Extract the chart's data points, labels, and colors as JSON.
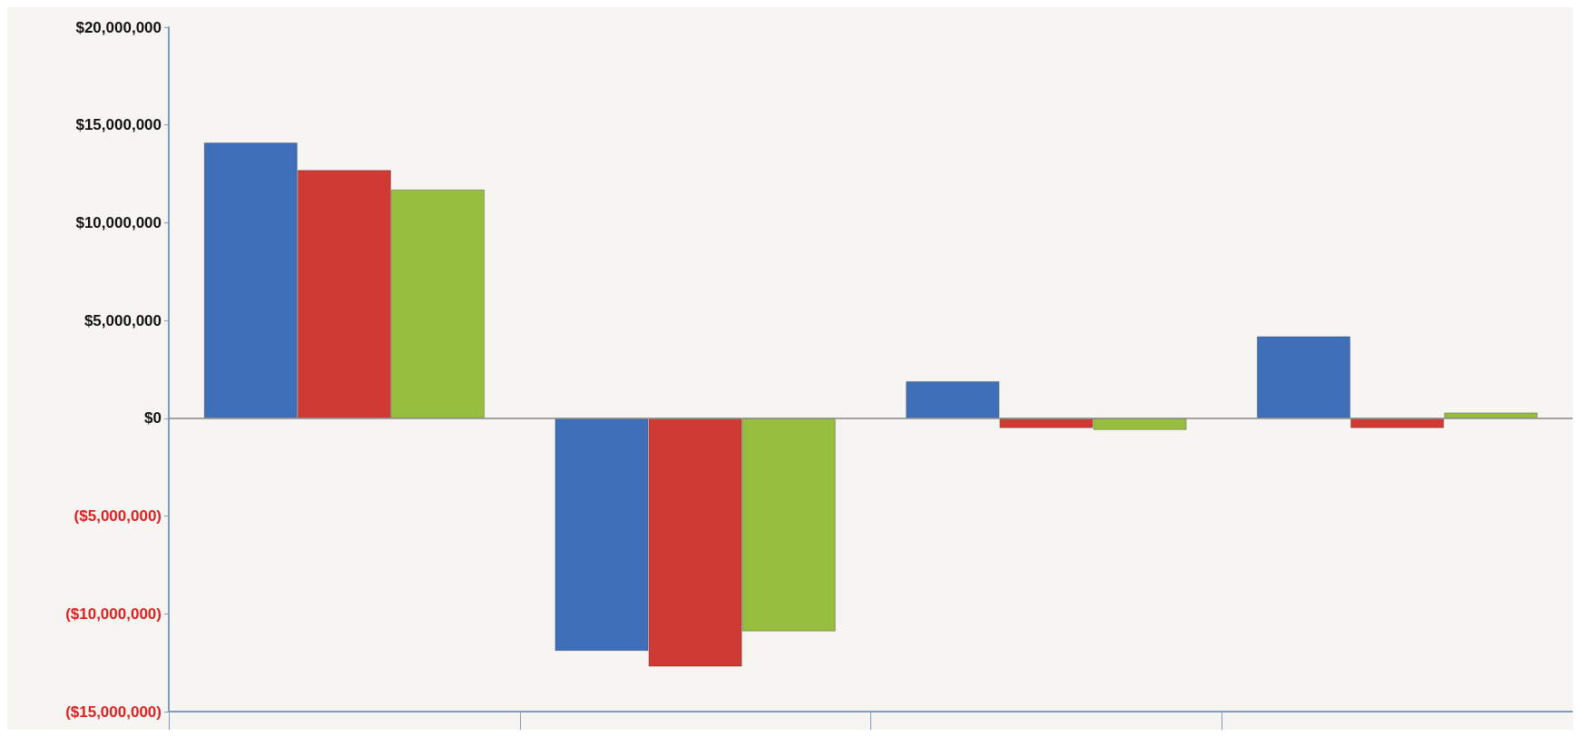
{
  "chart_data": {
    "type": "bar",
    "categories": [
      null,
      null,
      null,
      null
    ],
    "series": [
      {
        "color": "#3f6fb8",
        "values": [
          14100000,
          -11900000,
          1900000,
          4200000
        ]
      },
      {
        "color": "#d03a34",
        "values": [
          12700000,
          -12700000,
          -500000,
          -500000
        ]
      },
      {
        "color": "#97be3f",
        "values": [
          11700000,
          -10900000,
          -600000,
          300000
        ]
      }
    ],
    "ylim": [
      -15000000,
      20000000
    ],
    "yticks": [
      {
        "value": -15000000,
        "label": "($15,000,000)"
      },
      {
        "value": -10000000,
        "label": "($10,000,000)"
      },
      {
        "value": -5000000,
        "label": "($5,000,000)"
      },
      {
        "value": 0,
        "label": "$0"
      },
      {
        "value": 5000000,
        "label": "$5,000,000"
      },
      {
        "value": 10000000,
        "label": "$10,000,000"
      },
      {
        "value": 15000000,
        "label": "$15,000,000"
      },
      {
        "value": 20000000,
        "label": "$20,000,000"
      }
    ],
    "ref_lines": [
      {
        "axis": "y",
        "value": 0,
        "color": "#888888"
      }
    ]
  }
}
